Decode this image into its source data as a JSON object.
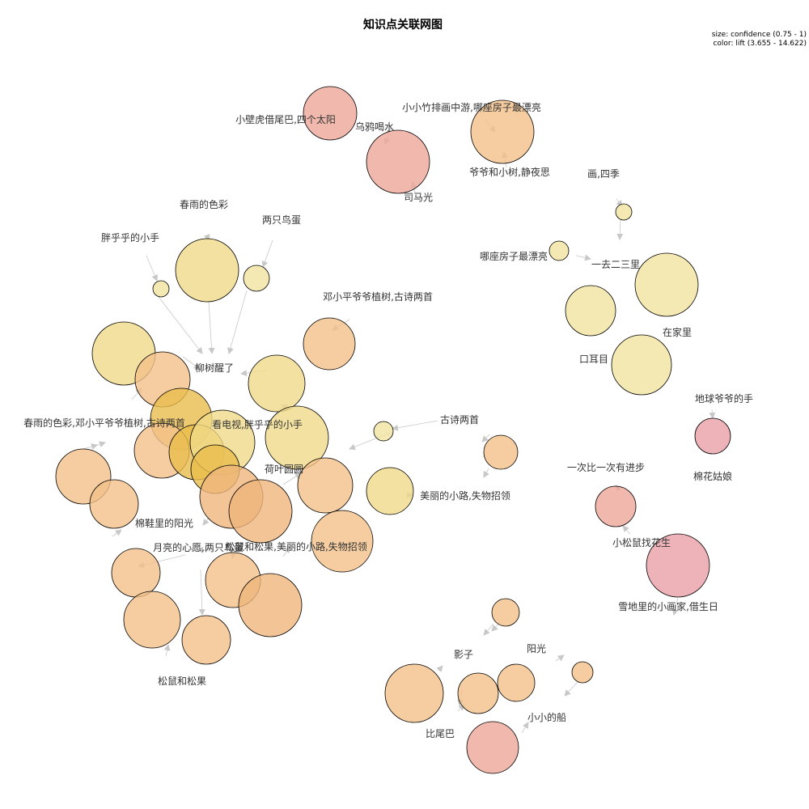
{
  "title": "知识点关联网图",
  "legend": {
    "size": "size: confidence (0.75 - 1)",
    "color": "color: lift (3.655 - 14.622)"
  },
  "colors": {
    "yellow": "#f0d98a",
    "light_yellow": "#f1e4a0",
    "orange": "#f2c18a",
    "deep_orange": "#efb57c",
    "salmon": "#eea898",
    "pink": "#e8a0a8",
    "gold": "#e9bd4c"
  },
  "labels": [
    "小壁虎借尾巴,四个太阳",
    "乌鸦喝水",
    "小小竹排画中游,哪座房子最漂亮",
    "爷爷和小树,静夜思",
    "司马光",
    "画,四季",
    "哪座房子最漂亮",
    "一去二三里",
    "在家里",
    "口耳目",
    "春雨的色彩",
    "两只鸟蛋",
    "胖乎乎的小手",
    "邓小平爷爷植树,古诗两首",
    "柳树醒了",
    "春雨的色彩,邓小平爷爷植树,古诗两首",
    "看电视,胖乎乎的小手",
    "古诗两首",
    "荷叶圆圆",
    "美丽的小路,失物招领",
    "棉鞋里的阳光",
    "月亮的心愿,两只鸟蛋",
    "松鼠和松果,美丽的小路,失物招领",
    "松鼠和松果",
    "地球爷爷的手",
    "棉花姑娘",
    "一次比一次有进步",
    "小松鼠找花生",
    "雪地里的小画家,借生日",
    "影子",
    "阳光",
    "小小的船",
    "比尾巴"
  ]
}
